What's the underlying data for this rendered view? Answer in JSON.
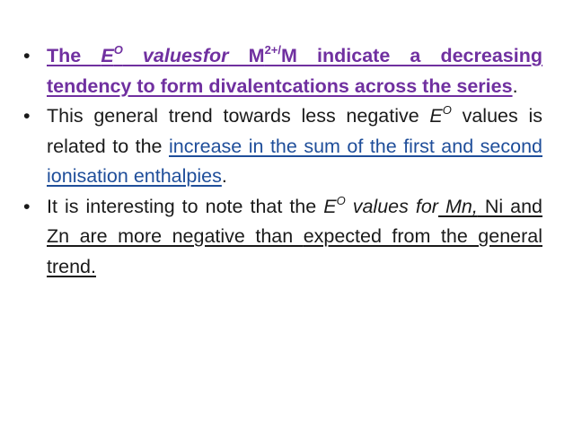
{
  "bullet_glyph": "•",
  "b1": {
    "p1": "The ",
    "e_letter": "E",
    "e_sup": "O",
    "p2": " valuesfor",
    "p3": " M",
    "m_sup": "2+/",
    "p4": "M indicate a decreasing tendency to form divalentcations across the series",
    "p5": "."
  },
  "b2": {
    "p1": "This general trend towards less negative ",
    "e_letter": "E",
    "e_sup": "O",
    "p2": " values is related to the ",
    "p3": "increase in the sum of the first and second ionisation enthalpies",
    "p4": "."
  },
  "b3": {
    "p1": "It is interesting to note that the ",
    "e_letter": "E",
    "e_sup": "O",
    "p2": " values for",
    "p3": " Mn,",
    "p4": " Ni and Zn are more negative than ",
    "p5": "expected from the general trend."
  },
  "colors": {
    "emphasis_purple": "#7030a0",
    "link_blue": "#1f4e9a",
    "text": "#1a1a1a"
  }
}
